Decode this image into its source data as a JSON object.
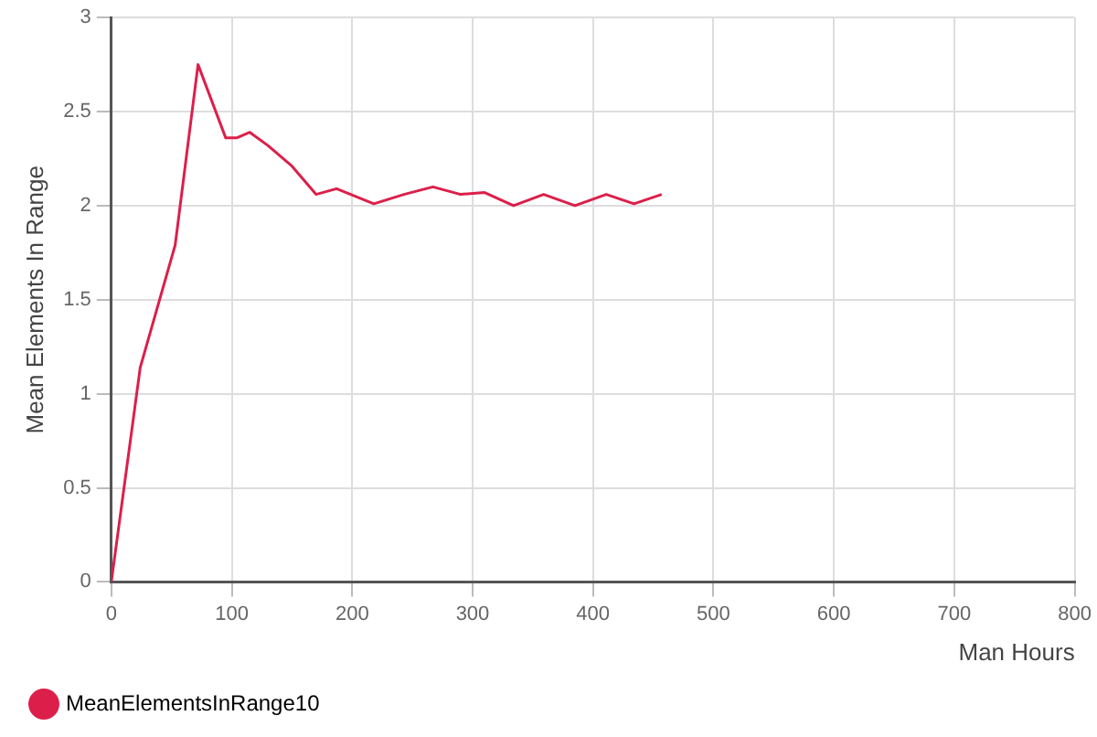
{
  "chart_data": {
    "type": "line",
    "xlabel": "Man Hours",
    "ylabel": "Mean Elements In Range",
    "x": [
      0,
      24,
      53,
      72,
      95,
      104,
      115,
      130,
      150,
      170,
      187,
      218,
      243,
      267,
      290,
      310,
      334,
      359,
      385,
      411,
      434,
      457
    ],
    "series": [
      {
        "name": "MeanElementsInRange10",
        "color": "#dc1f4a",
        "values": [
          0,
          1.14,
          1.79,
          2.75,
          2.36,
          2.36,
          2.39,
          2.32,
          2.21,
          2.06,
          2.09,
          2.01,
          2.06,
          2.1,
          2.06,
          2.07,
          2.0,
          2.06,
          2.0,
          2.06,
          2.01,
          2.06
        ]
      }
    ],
    "xlim": [
      0,
      800
    ],
    "xticks": [
      0,
      100,
      200,
      300,
      400,
      500,
      600,
      700,
      800
    ],
    "ylim": [
      0,
      3
    ],
    "yticks": [
      0,
      0.5,
      1,
      1.5,
      2,
      2.5,
      3
    ],
    "grid": true,
    "legend": "bottom left",
    "marker": "none",
    "line_style": "solid"
  }
}
